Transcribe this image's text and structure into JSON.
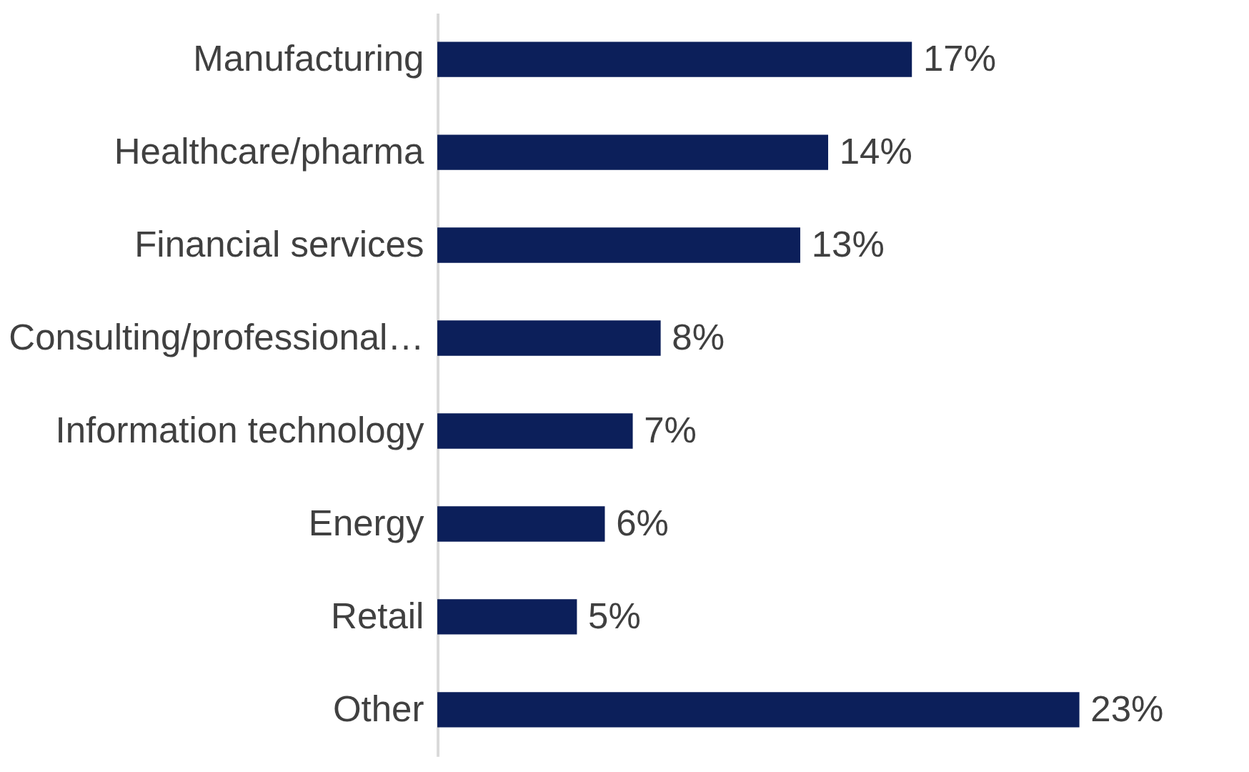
{
  "chart_data": {
    "type": "bar",
    "orientation": "horizontal",
    "categories": [
      "Manufacturing",
      "Healthcare/pharma",
      "Financial services",
      "Consulting/professional…",
      "Information technology",
      "Energy",
      "Retail",
      "Other"
    ],
    "values": [
      17,
      14,
      13,
      8,
      7,
      6,
      5,
      23
    ],
    "value_labels": [
      "17%",
      "14%",
      "13%",
      "8%",
      "7%",
      "6%",
      "5%",
      "23%"
    ],
    "color": "#0c1f5a"
  }
}
